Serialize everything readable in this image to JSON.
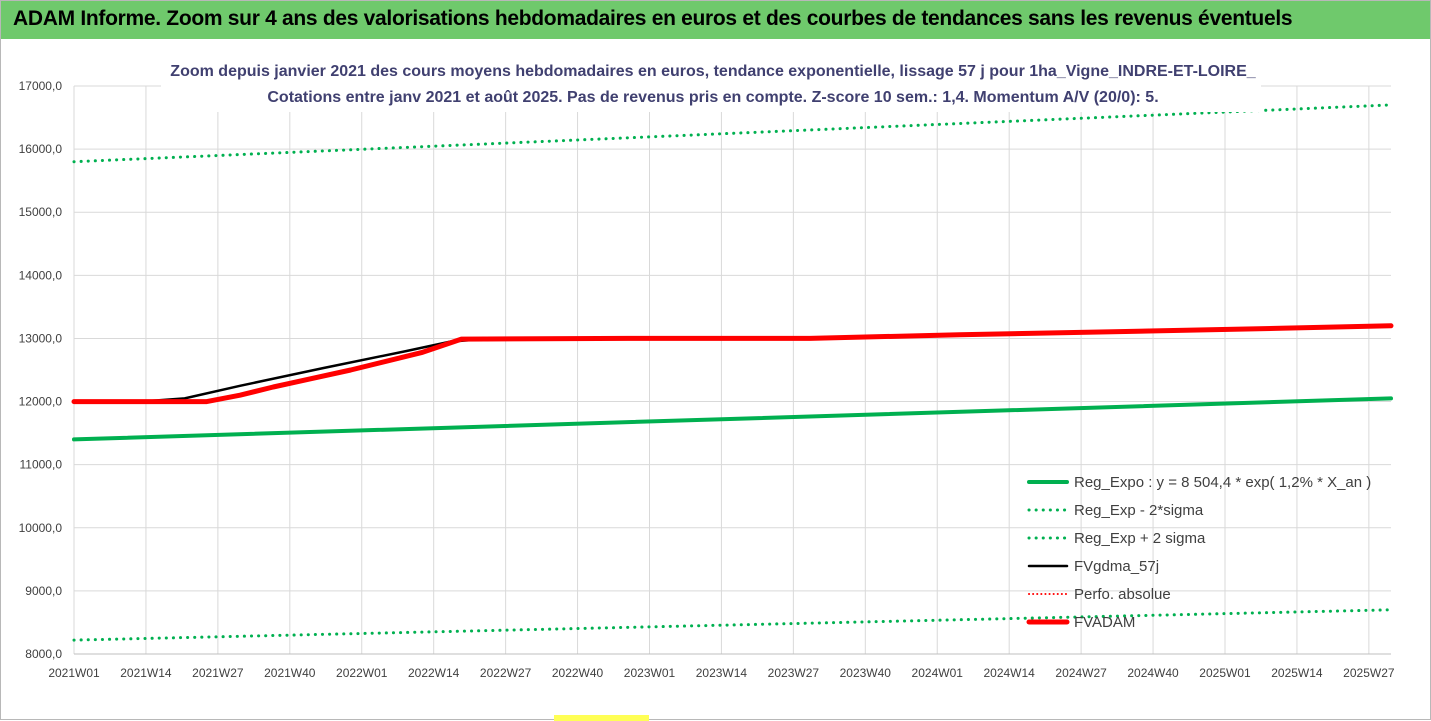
{
  "header": {
    "title": "ADAM Informe. Zoom sur 4 ans des valorisations hebdomadaires en euros et des courbes de tendances sans les revenus éventuels"
  },
  "colors": {
    "header_bg": "#6fc96c",
    "green": "#00b050",
    "red": "#ff0000",
    "black": "#000000",
    "grid": "#d9d9d9"
  },
  "chart_data": {
    "type": "line",
    "title": "Zoom depuis janvier 2021 des cours moyens hebdomadaires en euros, tendance exponentielle, lissage 57 j pour 1ha_Vigne_INDRE-ET-LOIRE_",
    "subtitle": "Cotations entre janv 2021 et août 2025.  Pas de revenus pris en compte. Z-score 10 sem.: 1,4. Momentum A/V (20/0): 5.",
    "xlabel": "",
    "ylabel": "",
    "ylim": [
      8000,
      17000
    ],
    "y_ticks": [
      "8000,0",
      "9000,0",
      "10000,0",
      "11000,0",
      "12000,0",
      "13000,0",
      "14000,0",
      "15000,0",
      "16000,0",
      "17000,0"
    ],
    "x_ticks": [
      "2021W01",
      "2021W14",
      "2021W27",
      "2021W40",
      "2022W01",
      "2022W14",
      "2022W27",
      "2022W40",
      "2023W01",
      "2023W14",
      "2023W27",
      "2023W40",
      "2024W01",
      "2024W14",
      "2024W27",
      "2024W40",
      "2025W01",
      "2025W14",
      "2025W27"
    ],
    "x_range_weeks": [
      0,
      238
    ],
    "grid": true,
    "legend_position": "bottom-right",
    "series": [
      {
        "name": "Reg_Expo : y = 8 504,4 * exp( 1,2% *  X_an )",
        "color": "#00b050",
        "style": "solid",
        "width": 4,
        "x": [
          0,
          238
        ],
        "y": [
          11400,
          12050
        ]
      },
      {
        "name": "Reg_Exp - 2*sigma",
        "color": "#00b050",
        "style": "dotted",
        "width": 3,
        "x": [
          0,
          238
        ],
        "y": [
          8220,
          8700
        ]
      },
      {
        "name": "Reg_Exp + 2 sigma",
        "color": "#00b050",
        "style": "dotted",
        "width": 3,
        "x": [
          0,
          238
        ],
        "y": [
          15800,
          16700
        ]
      },
      {
        "name": "FVgdma_57j",
        "color": "#000000",
        "style": "solid",
        "width": 2.5,
        "x": [
          0,
          12,
          20,
          30,
          45,
          60,
          68,
          74,
          80
        ],
        "y": [
          12000,
          12000,
          12050,
          12250,
          12530,
          12800,
          12950,
          12990,
          13000
        ]
      },
      {
        "name": "Perfo. absolue",
        "color": "#ff0000",
        "style": "dotted",
        "width": 2,
        "x": [],
        "y": []
      },
      {
        "name": "FVADAM",
        "color": "#ff0000",
        "style": "solid",
        "width": 5,
        "x": [
          0,
          24,
          30,
          36,
          50,
          63,
          70,
          100,
          133,
          160,
          190,
          218,
          238
        ],
        "y": [
          12000,
          12000,
          12100,
          12230,
          12500,
          12780,
          12990,
          13000,
          13000,
          13060,
          13110,
          13160,
          13200
        ]
      }
    ]
  }
}
